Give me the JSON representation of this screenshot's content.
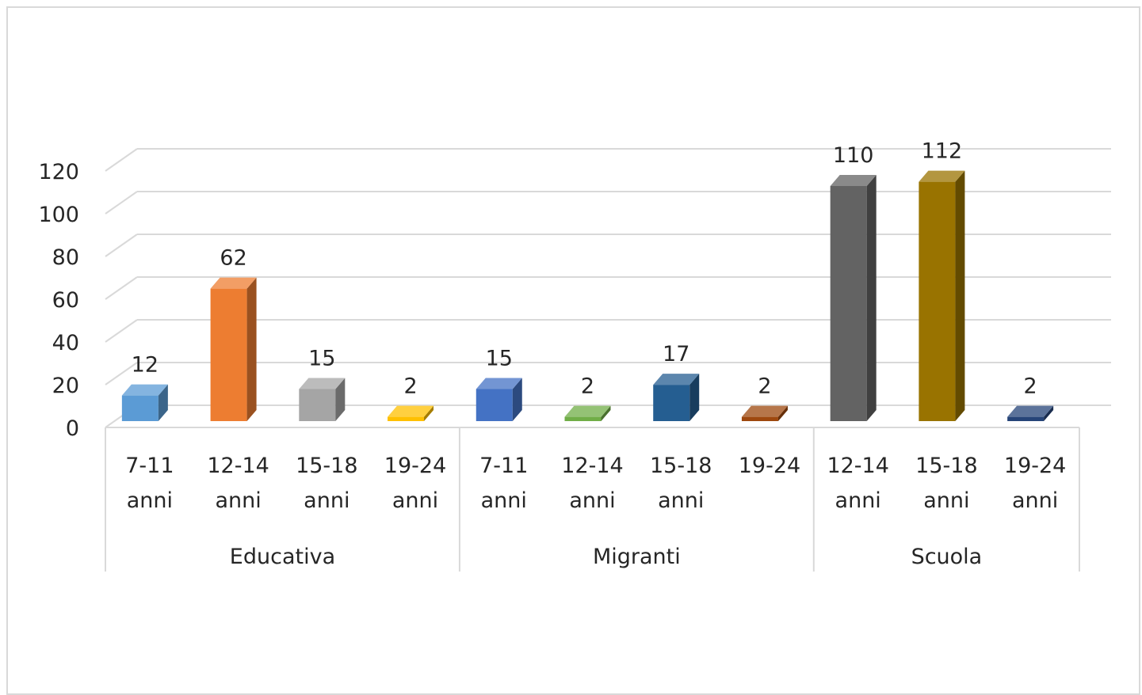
{
  "chart_data": {
    "type": "bar",
    "style": "3d-clustered-column",
    "title": "",
    "xlabel": "",
    "ylabel": "",
    "ylim": [
      0,
      120
    ],
    "yticks": [
      0,
      20,
      40,
      60,
      80,
      100,
      120
    ],
    "grid": true,
    "legend": "none",
    "groups": [
      {
        "name": "Educativa",
        "bars": [
          {
            "line1": "7-11",
            "line2": "anni",
            "value": 12,
            "label": "12",
            "color": "#5b9bd5"
          },
          {
            "line1": "12-14",
            "line2": "anni",
            "value": 62,
            "label": "62",
            "color": "#ed7d31"
          },
          {
            "line1": "15-18",
            "line2": "anni",
            "value": 15,
            "label": "15",
            "color": "#a5a5a5"
          },
          {
            "line1": "19-24",
            "line2": "anni",
            "value": 2,
            "label": "2",
            "color": "#ffc000"
          }
        ]
      },
      {
        "name": "Migranti",
        "bars": [
          {
            "line1": "7-11",
            "line2": "anni",
            "value": 15,
            "label": "15",
            "color": "#4472c4"
          },
          {
            "line1": "12-14",
            "line2": "anni",
            "value": 2,
            "label": "2",
            "color": "#70ad47"
          },
          {
            "line1": "15-18",
            "line2": "anni",
            "value": 17,
            "label": "17",
            "color": "#255e91"
          },
          {
            "line1": "19-24",
            "line2": "",
            "value": 2,
            "label": "2",
            "color": "#9e480e"
          }
        ]
      },
      {
        "name": "Scuola",
        "bars": [
          {
            "line1": "12-14",
            "line2": "anni",
            "value": 110,
            "label": "110",
            "color": "#636363"
          },
          {
            "line1": "15-18",
            "line2": "anni",
            "value": 112,
            "label": "112",
            "color": "#997300"
          },
          {
            "line1": "19-24",
            "line2": "anni",
            "value": 2,
            "label": "2",
            "color": "#264478"
          }
        ]
      }
    ]
  }
}
